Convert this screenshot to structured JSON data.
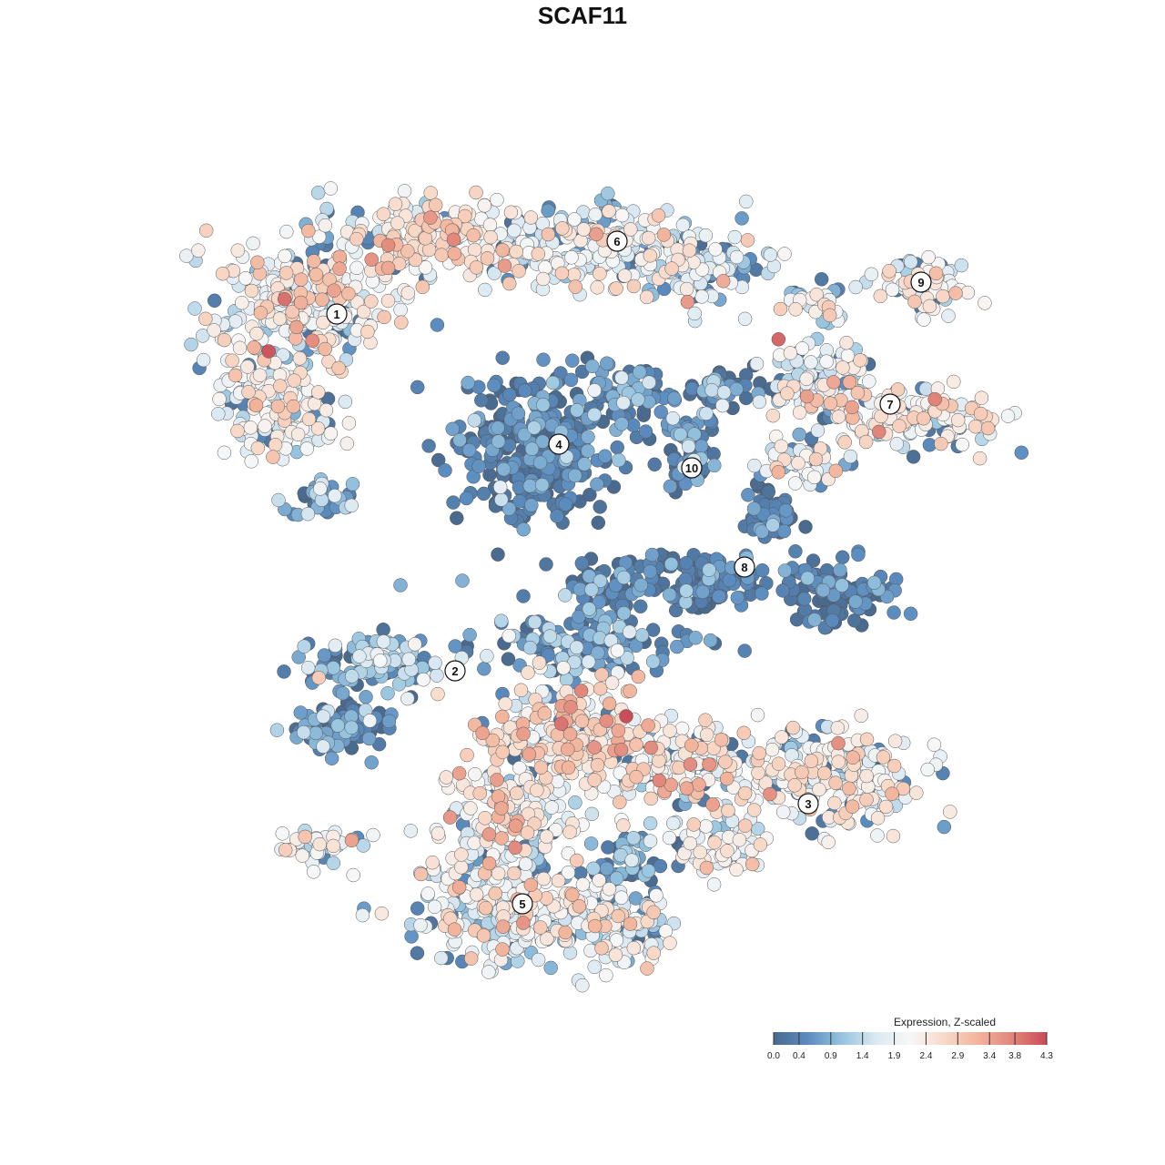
{
  "title": "SCAF11",
  "chart_data": {
    "type": "scatter",
    "title": "SCAF11",
    "color_variable": "Expression, Z-scaled",
    "legend": {
      "title": "Expression, Z-scaled",
      "placement": "bottom-right",
      "ticks": [
        "0.0",
        "0.4",
        "0.9",
        "1.4",
        "1.9",
        "2.4",
        "2.9",
        "3.4",
        "3.8",
        "4.3"
      ],
      "range": [
        0.0,
        4.3
      ],
      "colors": [
        "#4a6a8e",
        "#5b8cbf",
        "#96c4df",
        "#dbe9f2",
        "#f7f7f7",
        "#f8d9c8",
        "#f2b49c",
        "#e0857a",
        "#c94b57"
      ]
    },
    "axes_visible": false,
    "grid": false,
    "clusters": [
      {
        "label": "1",
        "center": [
          370,
          345
        ],
        "mean_expression": 2.2
      },
      {
        "label": "2",
        "center": [
          500,
          737
        ],
        "mean_expression": 0.6
      },
      {
        "label": "3",
        "center": [
          888,
          883
        ],
        "mean_expression": 2.1
      },
      {
        "label": "4",
        "center": [
          614,
          488
        ],
        "mean_expression": 0.3
      },
      {
        "label": "5",
        "center": [
          574,
          993
        ],
        "mean_expression": 2.0
      },
      {
        "label": "6",
        "center": [
          678,
          265
        ],
        "mean_expression": 1.9
      },
      {
        "label": "7",
        "center": [
          978,
          444
        ],
        "mean_expression": 1.9
      },
      {
        "label": "8",
        "center": [
          818,
          623
        ],
        "mean_expression": 0.3
      },
      {
        "label": "9",
        "center": [
          1012,
          310
        ],
        "mean_expression": 1.9
      },
      {
        "label": "10",
        "center": [
          760,
          514
        ],
        "mean_expression": 0.5
      }
    ]
  }
}
